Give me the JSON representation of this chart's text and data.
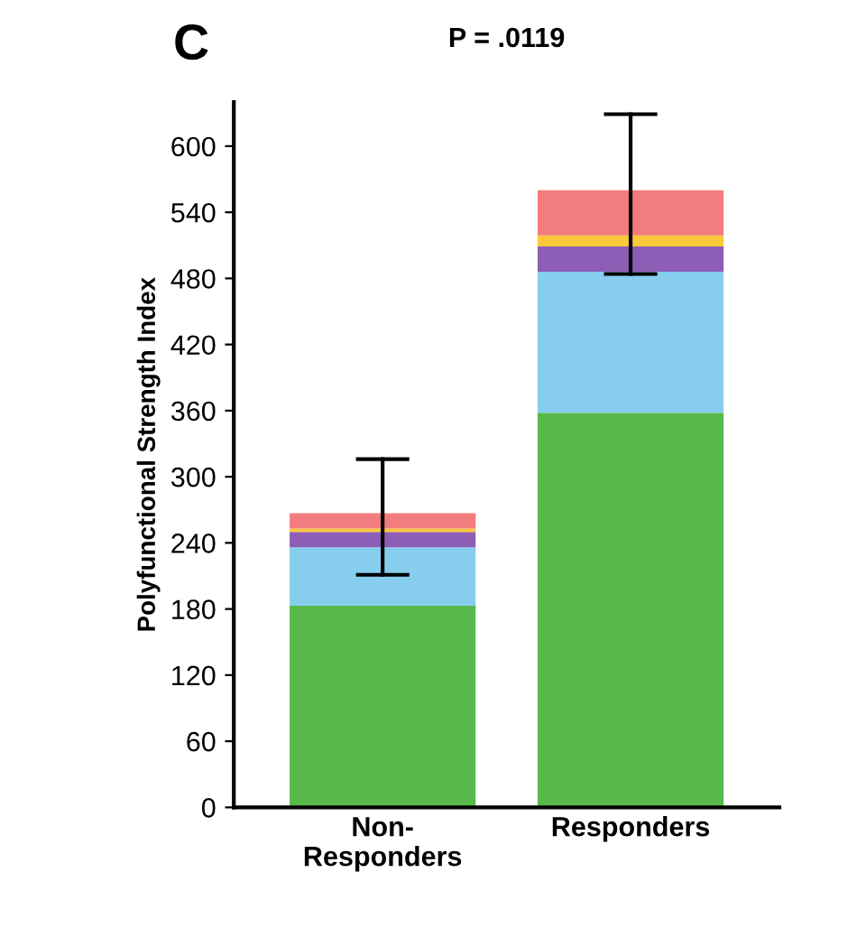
{
  "chart_data": {
    "type": "bar",
    "stacked": true,
    "title": "P = .0119",
    "ylabel": "Polyfunctional Strength Index",
    "annotations": [
      "C"
    ],
    "categories": [
      "Non-\nResponders",
      "Responders"
    ],
    "series": [
      {
        "color": "#58b94b",
        "values": [
          183,
          358
        ]
      },
      {
        "color": "#87ceee",
        "values": [
          53,
          128
        ]
      },
      {
        "color": "#8e5db5",
        "values": [
          14,
          23
        ]
      },
      {
        "color": "#f9c93a",
        "values": [
          3,
          10
        ]
      },
      {
        "color": "#f27c7e",
        "values": [
          14,
          41
        ],
        "errors": [
          [
            211,
            316
          ],
          [
            484,
            629
          ]
        ]
      }
    ],
    "ylim": [
      0,
      640
    ],
    "yticks": [
      0,
      60,
      120,
      180,
      240,
      300,
      360,
      420,
      480,
      540,
      600
    ],
    "grid": false,
    "legend": false
  }
}
